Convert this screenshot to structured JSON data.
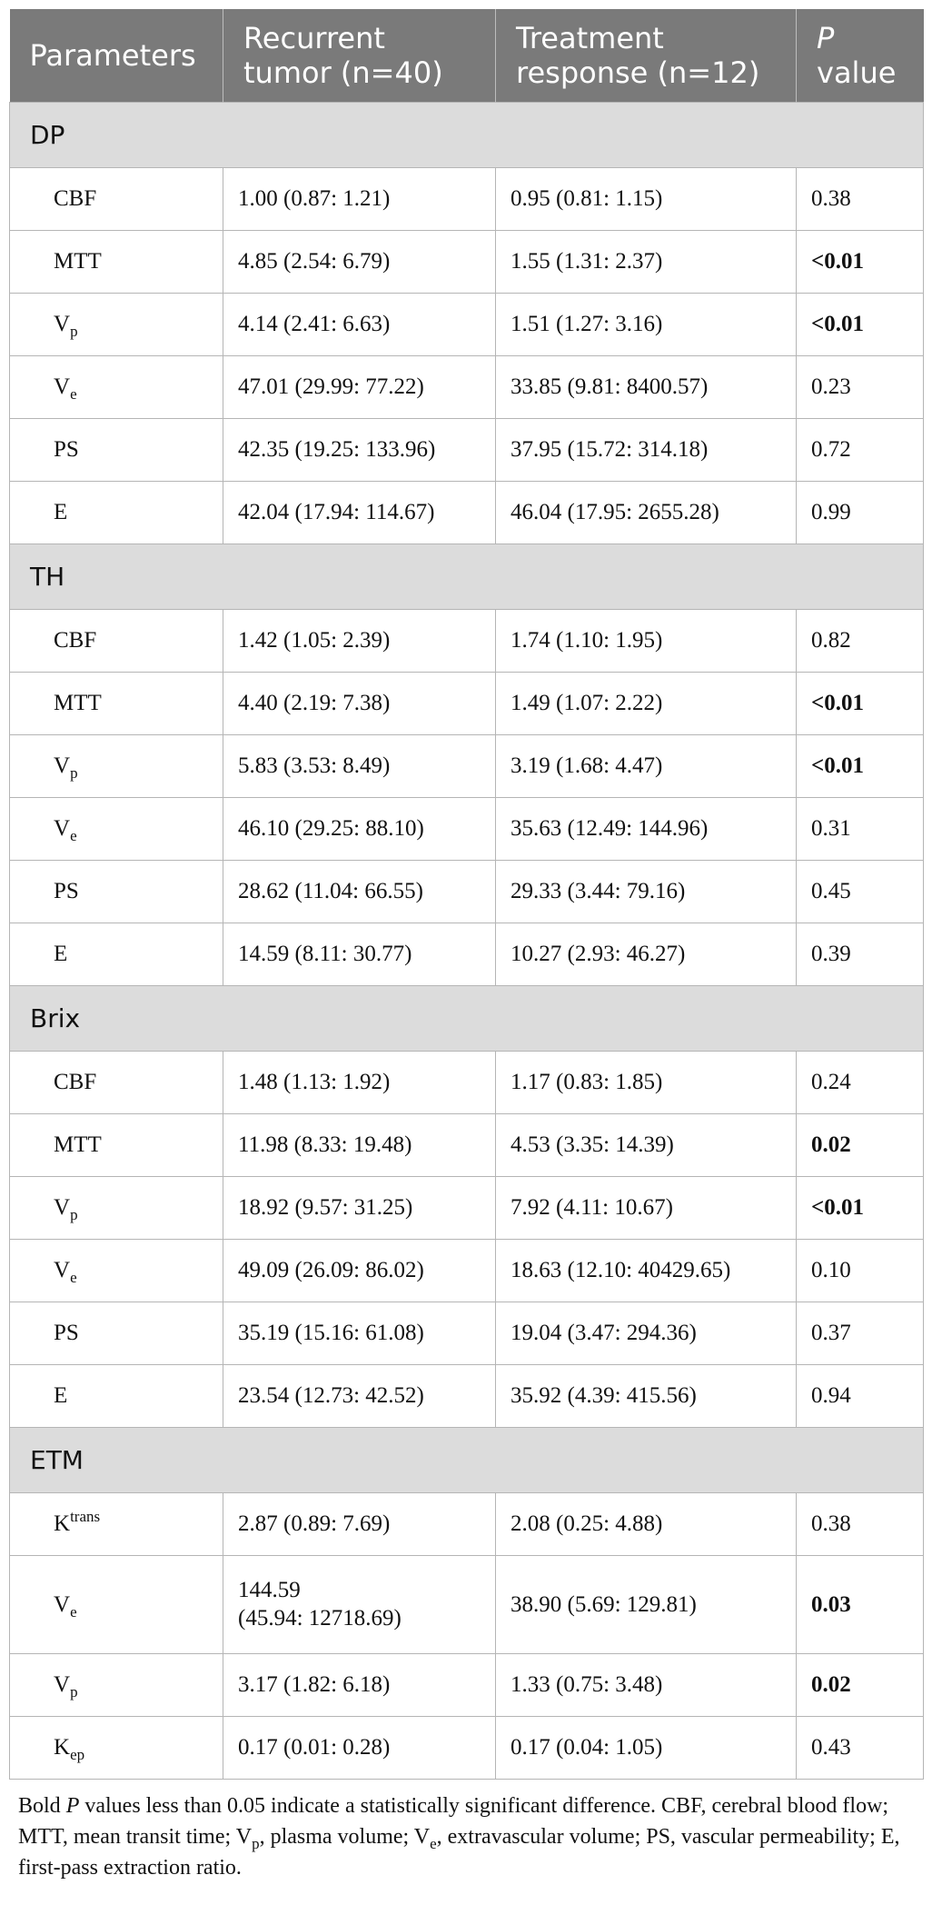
{
  "headers": {
    "parameters": "Parameters",
    "recurrent": "Recurrent tumor (n=40)",
    "treatment": "Treatment response (n=12)",
    "p_italic": "P",
    "p_rest": " value"
  },
  "groups": [
    {
      "name": "DP",
      "rows": [
        {
          "base": "CBF",
          "sub": "",
          "sup": "",
          "recurrent": "1.00 (0.87: 1.21)",
          "treatment": "0.95 (0.81: 1.15)",
          "p": "0.38",
          "bold": false
        },
        {
          "base": "MTT",
          "sub": "",
          "sup": "",
          "recurrent": "4.85 (2.54: 6.79)",
          "treatment": "1.55 (1.31: 2.37)",
          "p": "<0.01",
          "bold": true
        },
        {
          "base": "V",
          "sub": "p",
          "sup": "",
          "recurrent": "4.14 (2.41: 6.63)",
          "treatment": "1.51 (1.27: 3.16)",
          "p": "<0.01",
          "bold": true
        },
        {
          "base": "V",
          "sub": "e",
          "sup": "",
          "recurrent": "47.01 (29.99: 77.22)",
          "treatment": "33.85 (9.81: 8400.57)",
          "p": "0.23",
          "bold": false
        },
        {
          "base": "PS",
          "sub": "",
          "sup": "",
          "recurrent": "42.35 (19.25: 133.96)",
          "treatment": "37.95 (15.72: 314.18)",
          "p": "0.72",
          "bold": false
        },
        {
          "base": "E",
          "sub": "",
          "sup": "",
          "recurrent": "42.04 (17.94: 114.67)",
          "treatment": "46.04 (17.95: 2655.28)",
          "p": "0.99",
          "bold": false
        }
      ]
    },
    {
      "name": "TH",
      "rows": [
        {
          "base": "CBF",
          "sub": "",
          "sup": "",
          "recurrent": "1.42 (1.05: 2.39)",
          "treatment": "1.74 (1.10: 1.95)",
          "p": "0.82",
          "bold": false
        },
        {
          "base": "MTT",
          "sub": "",
          "sup": "",
          "recurrent": "4.40 (2.19: 7.38)",
          "treatment": "1.49 (1.07: 2.22)",
          "p": "<0.01",
          "bold": true
        },
        {
          "base": "V",
          "sub": "p",
          "sup": "",
          "recurrent": "5.83 (3.53: 8.49)",
          "treatment": "3.19 (1.68: 4.47)",
          "p": "<0.01",
          "bold": true
        },
        {
          "base": "V",
          "sub": "e",
          "sup": "",
          "recurrent": "46.10 (29.25: 88.10)",
          "treatment": "35.63 (12.49: 144.96)",
          "p": "0.31",
          "bold": false
        },
        {
          "base": "PS",
          "sub": "",
          "sup": "",
          "recurrent": "28.62 (11.04: 66.55)",
          "treatment": "29.33 (3.44: 79.16)",
          "p": "0.45",
          "bold": false
        },
        {
          "base": "E",
          "sub": "",
          "sup": "",
          "recurrent": "14.59 (8.11: 30.77)",
          "treatment": "10.27 (2.93: 46.27)",
          "p": "0.39",
          "bold": false
        }
      ]
    },
    {
      "name": "Brix",
      "rows": [
        {
          "base": "CBF",
          "sub": "",
          "sup": "",
          "recurrent": "1.48 (1.13: 1.92)",
          "treatment": "1.17 (0.83: 1.85)",
          "p": "0.24",
          "bold": false
        },
        {
          "base": "MTT",
          "sub": "",
          "sup": "",
          "recurrent": "11.98 (8.33: 19.48)",
          "treatment": "4.53 (3.35: 14.39)",
          "p": "0.02",
          "bold": true
        },
        {
          "base": "V",
          "sub": "p",
          "sup": "",
          "recurrent": "18.92 (9.57: 31.25)",
          "treatment": "7.92 (4.11: 10.67)",
          "p": "<0.01",
          "bold": true
        },
        {
          "base": "V",
          "sub": "e",
          "sup": "",
          "recurrent": "49.09 (26.09: 86.02)",
          "treatment": "18.63 (12.10: 40429.65)",
          "p": "0.10",
          "bold": false
        },
        {
          "base": "PS",
          "sub": "",
          "sup": "",
          "recurrent": "35.19 (15.16: 61.08)",
          "treatment": "19.04 (3.47: 294.36)",
          "p": "0.37",
          "bold": false
        },
        {
          "base": "E",
          "sub": "",
          "sup": "",
          "recurrent": "23.54 (12.73: 42.52)",
          "treatment": "35.92 (4.39: 415.56)",
          "p": "0.94",
          "bold": false
        }
      ]
    },
    {
      "name": "ETM",
      "rows": [
        {
          "base": "K",
          "sub": "",
          "sup": "trans",
          "recurrent": "2.87 (0.89: 7.69)",
          "treatment": "2.08 (0.25: 4.88)",
          "p": "0.38",
          "bold": false
        },
        {
          "base": "V",
          "sub": "e",
          "sup": "",
          "recurrent": "144.59\n(45.94: 12718.69)",
          "treatment": "38.90 (5.69: 129.81)",
          "p": "0.03",
          "bold": true
        },
        {
          "base": "V",
          "sub": "p",
          "sup": "",
          "recurrent": "3.17 (1.82: 6.18)",
          "treatment": "1.33 (0.75: 3.48)",
          "p": "0.02",
          "bold": true
        },
        {
          "base": "K",
          "sub": "ep",
          "sup": "",
          "recurrent": "0.17 (0.01: 0.28)",
          "treatment": "0.17 (0.04: 1.05)",
          "p": "0.43",
          "bold": false
        }
      ]
    }
  ],
  "footnote": {
    "part1": "Bold ",
    "p_italic": "P",
    "part2": " values less than 0.05 indicate a statistically significant difference. CBF, cerebral blood flow; MTT, mean transit time; V",
    "sub_p": "p",
    "part3": ", plasma volume; V",
    "sub_e": "e",
    "part4": ", extravascular volume; PS, vascular permeability; E, first-pass extraction ratio."
  }
}
